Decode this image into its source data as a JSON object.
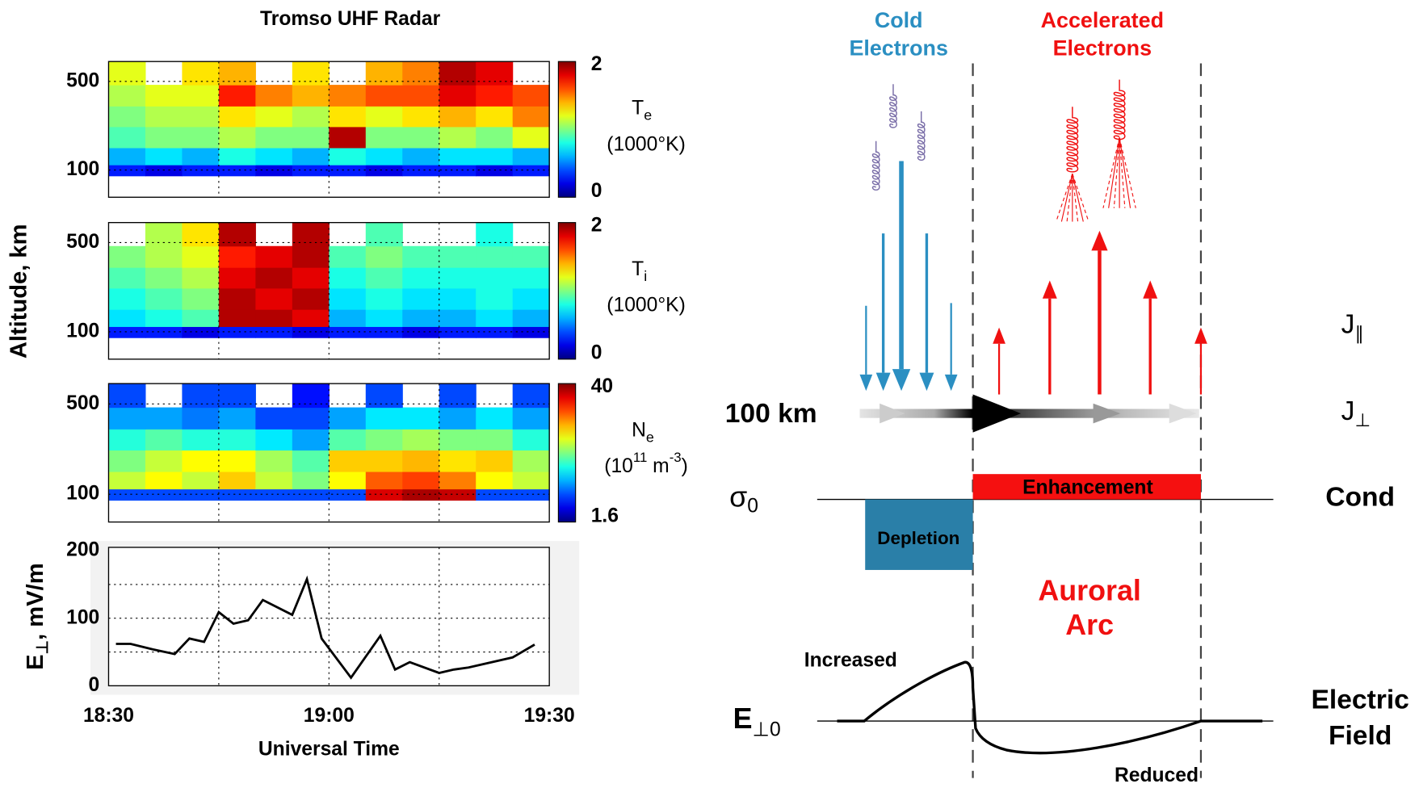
{
  "left_figure": {
    "title": "Tromso UHF Radar",
    "y_label": "Altitude, km"
  },
  "chart_data": [
    {
      "type": "heatmap",
      "xlim": [
        "18:30",
        "19:30"
      ],
      "ylim": [
        61,
        718
      ],
      "log_y": true,
      "yticks": [
        100,
        500
      ],
      "xgrid": [
        "18:45",
        "19:00",
        "19:15"
      ],
      "xbins": [
        "18:30",
        "18:35",
        "18:40",
        "18:45",
        "18:50",
        "18:55",
        "19:00",
        "19:05",
        "19:10",
        "19:15",
        "19:20",
        "19:25",
        "19:30"
      ],
      "ybins": [
        90,
        110,
        150,
        220,
        320,
        470,
        718
      ],
      "z": [
        [
          0.3,
          0.2,
          0.3,
          0.3,
          0.2,
          0.3,
          0.3,
          0.2,
          0.3,
          0.3,
          0.2,
          0.3
        ],
        [
          0.6,
          0.7,
          0.6,
          0.8,
          0.7,
          0.6,
          0.8,
          0.7,
          0.6,
          0.7,
          0.7,
          0.6
        ],
        [
          0.9,
          1.0,
          1.0,
          1.1,
          1.0,
          1.0,
          1.9,
          1.0,
          1.0,
          1.1,
          1.0,
          1.2
        ],
        [
          1.0,
          1.1,
          1.1,
          1.3,
          1.2,
          1.1,
          1.3,
          1.2,
          1.3,
          1.4,
          1.3,
          1.5
        ],
        [
          1.1,
          1.2,
          1.2,
          1.7,
          1.5,
          1.4,
          1.5,
          1.6,
          1.6,
          1.8,
          1.7,
          1.6
        ],
        [
          1.2,
          null,
          1.3,
          1.4,
          null,
          1.3,
          null,
          1.4,
          1.5,
          1.9,
          1.8,
          null
        ]
      ],
      "colorbar": {
        "symbol": "T",
        "subscript": "e",
        "unit_parts": [
          "(1000°K)"
        ],
        "clim": [
          0,
          2
        ],
        "ticks": [
          0,
          2
        ],
        "log": false,
        "colormap": "jet"
      }
    },
    {
      "type": "heatmap",
      "xlim": [
        "18:30",
        "19:30"
      ],
      "ylim": [
        61,
        718
      ],
      "log_y": true,
      "yticks": [
        100,
        500
      ],
      "xgrid": [
        "18:45",
        "19:00",
        "19:15"
      ],
      "xbins": [
        "18:30",
        "18:35",
        "18:40",
        "18:45",
        "18:50",
        "18:55",
        "19:00",
        "19:05",
        "19:10",
        "19:15",
        "19:20",
        "19:25",
        "19:30"
      ],
      "ybins": [
        90,
        110,
        150,
        220,
        320,
        470,
        718
      ],
      "z": [
        [
          0.3,
          0.3,
          0.2,
          0.3,
          0.3,
          0.2,
          0.3,
          0.3,
          0.2,
          0.3,
          0.3,
          0.2
        ],
        [
          0.7,
          0.8,
          0.9,
          1.9,
          1.9,
          1.8,
          0.6,
          0.7,
          0.6,
          0.6,
          0.7,
          0.6
        ],
        [
          0.8,
          0.9,
          1.0,
          1.9,
          1.8,
          1.9,
          0.7,
          0.8,
          0.7,
          0.7,
          0.8,
          0.7
        ],
        [
          0.9,
          1.0,
          1.1,
          1.8,
          1.9,
          1.8,
          0.8,
          0.9,
          0.8,
          0.8,
          0.8,
          0.8
        ],
        [
          1.0,
          1.1,
          1.2,
          1.7,
          1.8,
          1.9,
          0.9,
          1.0,
          0.9,
          0.9,
          0.9,
          0.9
        ],
        [
          null,
          1.1,
          1.3,
          1.9,
          null,
          1.9,
          null,
          0.9,
          null,
          null,
          0.8,
          null
        ]
      ],
      "colorbar": {
        "symbol": "T",
        "subscript": "i",
        "unit_parts": [
          "(1000°K)"
        ],
        "clim": [
          0,
          2
        ],
        "ticks": [
          0,
          2
        ],
        "log": false,
        "colormap": "jet"
      }
    },
    {
      "type": "heatmap",
      "xlim": [
        "18:30",
        "19:30"
      ],
      "ylim": [
        61,
        718
      ],
      "log_y": true,
      "yticks": [
        100,
        500
      ],
      "xgrid": [
        "18:45",
        "19:00",
        "19:15"
      ],
      "xbins": [
        "18:30",
        "18:35",
        "18:40",
        "18:45",
        "18:50",
        "18:55",
        "19:00",
        "19:05",
        "19:10",
        "19:15",
        "19:20",
        "19:25",
        "19:30"
      ],
      "ybins": [
        90,
        110,
        150,
        220,
        320,
        470,
        718
      ],
      "z": [
        [
          3,
          3,
          3,
          3,
          3,
          3,
          3,
          30,
          35,
          32,
          3,
          3
        ],
        [
          10,
          12,
          10,
          14,
          10,
          8,
          12,
          20,
          22,
          18,
          12,
          10
        ],
        [
          8,
          10,
          12,
          12,
          9,
          7,
          14,
          14,
          15,
          13,
          14,
          9
        ],
        [
          6,
          7,
          6,
          6,
          5,
          4,
          7,
          8,
          9,
          8,
          8,
          6
        ],
        [
          4,
          4,
          3.5,
          4,
          3,
          3,
          4,
          5,
          5,
          4,
          5,
          4
        ],
        [
          3,
          null,
          3,
          3,
          null,
          2.5,
          null,
          3,
          null,
          3,
          null,
          3
        ]
      ],
      "colorbar": {
        "symbol": "N",
        "subscript": "e",
        "unit_parts": [
          "(10",
          "11",
          " m",
          "-3",
          ")"
        ],
        "clim": [
          1.6,
          40
        ],
        "ticks": [
          1.6,
          40
        ],
        "log": true,
        "colormap": "jet"
      }
    },
    {
      "type": "line",
      "color": "#000000",
      "xlim": [
        "18:30",
        "19:30"
      ],
      "ylim": [
        0,
        205
      ],
      "xticks": [
        "18:30",
        "19:00",
        "19:30"
      ],
      "yticks": [
        0,
        100,
        200
      ],
      "xgrid": [
        "18:45",
        "19:00",
        "19:15"
      ],
      "ygrid": [
        50,
        100,
        150
      ],
      "x_label": "Universal Time",
      "y_label": {
        "symbol": "E",
        "subscript": "⊥",
        "unit": ", mV/m"
      },
      "x": [
        "18:31",
        "18:33",
        "18:36",
        "18:39",
        "18:41",
        "18:43",
        "18:45",
        "18:47",
        "18:49",
        "18:51",
        "18:55",
        "18:57",
        "18:59",
        "19:03",
        "19:07",
        "19:09",
        "19:11",
        "19:15",
        "19:17",
        "19:19",
        "19:25",
        "19:28"
      ],
      "values": [
        62,
        62,
        54,
        47,
        70,
        65,
        109,
        92,
        97,
        127,
        105,
        158,
        70,
        12,
        74,
        24,
        35,
        19,
        24,
        27,
        42,
        61
      ]
    }
  ],
  "diagram": {
    "cold_electrons": [
      "Cold",
      "Electrons"
    ],
    "accelerated_electrons": [
      "Accelerated",
      "Electrons"
    ],
    "altitude": "100 km",
    "j_parallel": {
      "symbol": "J",
      "subscript": "∥"
    },
    "j_perp": {
      "symbol": "J",
      "subscript": "⊥"
    },
    "sigma": {
      "symbol": "σ",
      "subscript": "0"
    },
    "cond": "Cond",
    "enhancement": "Enhancement",
    "depletion": "Depletion",
    "arc": [
      "Auroral",
      "Arc"
    ],
    "increased": "Increased",
    "reduced": "Reduced",
    "e_field": {
      "symbol": "E",
      "subscript": "⊥0"
    },
    "electric_field": [
      "Electric",
      "Field"
    ]
  }
}
